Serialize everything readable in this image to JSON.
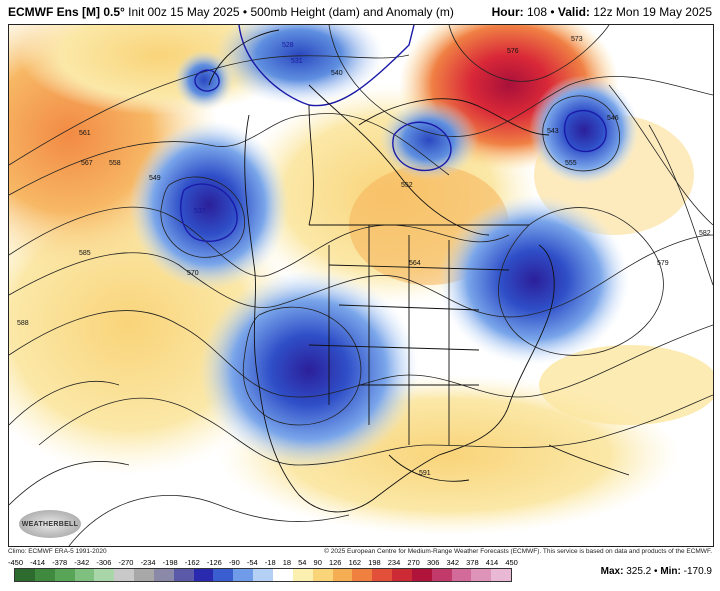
{
  "header": {
    "model": "ECMWF Ens [M] 0.5°",
    "init": "Init 00z 15 May 2025",
    "product": "500mb Height (dam) and Anomaly (m)",
    "hour_label": "Hour:",
    "hour": "108",
    "valid_label": "Valid:",
    "valid": "12z Mon 19 May 2025"
  },
  "contour_labels": [
    "528",
    "531",
    "537",
    "540",
    "543",
    "546",
    "549",
    "552",
    "555",
    "558",
    "561",
    "564",
    "567",
    "570",
    "573",
    "576",
    "579",
    "582",
    "585",
    "588",
    "591"
  ],
  "logo_text": "WEATHERBELL",
  "climo": "Climo: ECMWF ERA-5 1991-2020",
  "copyright": "© 2025 European Centre for Medium-Range Weather Forecasts (ECMWF). This service is based on data and products of the ECMWF.",
  "colorbar": {
    "labels": [
      "-450",
      "-414",
      "-378",
      "-342",
      "-306",
      "-270",
      "-234",
      "-198",
      "-162",
      "-126",
      "-90",
      "-54",
      "-18",
      "18",
      "54",
      "90",
      "126",
      "162",
      "198",
      "234",
      "270",
      "306",
      "342",
      "378",
      "414",
      "450"
    ],
    "colors": [
      "#2e6b2e",
      "#3f8a3f",
      "#58a558",
      "#7fbf7f",
      "#a9d6a9",
      "#c9c9c9",
      "#a8a8a8",
      "#8a8aa8",
      "#5a5aa8",
      "#2a2ab0",
      "#3a5ed0",
      "#6f9be8",
      "#b5d0f5",
      "#ffffff",
      "#fbf0b0",
      "#f9d479",
      "#f6ae55",
      "#ef8040",
      "#e2503a",
      "#cc2a34",
      "#b0143a",
      "#c23a6a",
      "#d26a9a",
      "#dd94b8",
      "#e8b8d4"
    ]
  },
  "stats": {
    "max_label": "Max:",
    "max": "325.2",
    "min_label": "Min:",
    "min": "-170.9"
  }
}
